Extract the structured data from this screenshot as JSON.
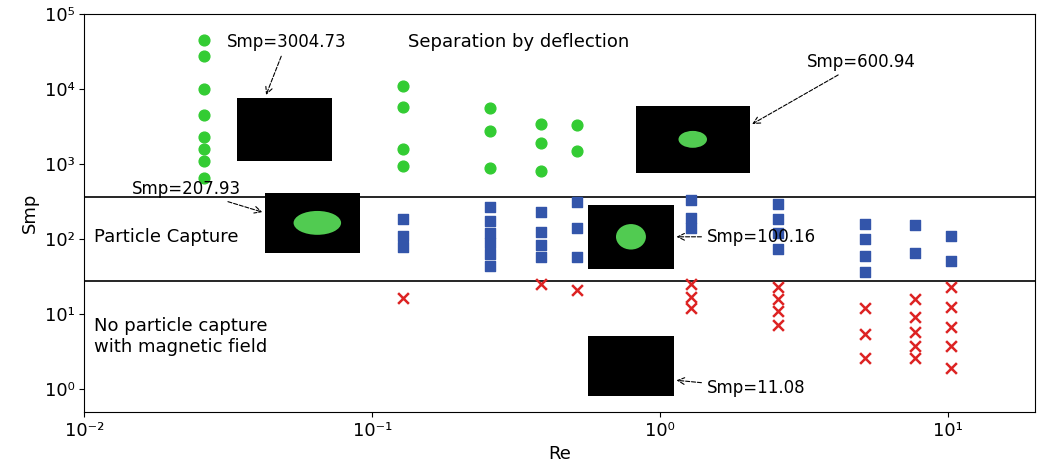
{
  "chart_data": {
    "type": "scatter",
    "xlabel": "Re",
    "ylabel": "Smp",
    "log": true,
    "xlim": [
      0.01,
      20
    ],
    "ylim": [
      0.5,
      100000
    ],
    "xticks": [
      {
        "value": 0.01,
        "label": "10⁻²"
      },
      {
        "value": 0.1,
        "label": "10⁻¹"
      },
      {
        "value": 1,
        "label": "10⁰"
      },
      {
        "value": 10,
        "label": "10¹"
      }
    ],
    "yticks": [
      {
        "value": 1,
        "label": "10⁰"
      },
      {
        "value": 10,
        "label": "10¹"
      },
      {
        "value": 100,
        "label": "10²"
      },
      {
        "value": 1000,
        "label": "10³"
      },
      {
        "value": 10000,
        "label": "10⁴"
      },
      {
        "value": 100000,
        "label": "10⁵"
      }
    ],
    "hlines": [
      28,
      360
    ],
    "series": [
      {
        "color": "#33cc33",
        "marker": "circle",
        "x": [
          0.026,
          0.026,
          0.026,
          0.026,
          0.026,
          0.026,
          0.026,
          0.026,
          0.128,
          0.128,
          0.128,
          0.128,
          0.256,
          0.256,
          0.256,
          0.385,
          0.385,
          0.385,
          0.513,
          0.513
        ],
        "values": [
          45000,
          28000,
          10000,
          4500,
          2300,
          1600,
          1100,
          650,
          11000,
          5800,
          1600,
          950,
          5600,
          2800,
          900,
          3400,
          1900,
          800,
          3300,
          1500
        ]
      },
      {
        "color": "#3355aa",
        "marker": "square",
        "x": [
          0.128,
          0.128,
          0.128,
          0.256,
          0.256,
          0.256,
          0.256,
          0.256,
          0.256,
          0.385,
          0.385,
          0.385,
          0.385,
          0.513,
          0.513,
          0.513,
          1.28,
          1.28,
          1.28,
          2.56,
          2.56,
          2.56,
          2.56,
          5.13,
          5.13,
          5.13,
          5.13,
          7.69,
          7.69,
          10.26,
          10.26
        ],
        "values": [
          183,
          111,
          78,
          268,
          175,
          121,
          90,
          63,
          44,
          232,
          123,
          84,
          57,
          310,
          140,
          57,
          330,
          190,
          140,
          290,
          183,
          121,
          74,
          160,
          100,
          60,
          37,
          155,
          66,
          111,
          51
        ]
      },
      {
        "color": "#dd2222",
        "marker": "x",
        "x": [
          0.128,
          0.385,
          0.513,
          1.28,
          1.28,
          1.28,
          2.56,
          2.56,
          2.56,
          2.56,
          5.13,
          5.13,
          5.13,
          7.69,
          7.69,
          7.69,
          7.69,
          7.69,
          10.26,
          10.26,
          10.26,
          10.26,
          10.26
        ],
        "values": [
          16.5,
          25,
          21,
          25,
          17,
          12,
          23,
          16,
          11,
          7.2,
          12,
          5.5,
          2.6,
          16,
          9.1,
          5.8,
          3.8,
          2.6,
          23,
          12.5,
          6.8,
          3.8,
          1.9
        ]
      }
    ],
    "annotations": [
      {
        "text": "Smp=3004.73"
      },
      {
        "text": "Separation by deflection"
      },
      {
        "text": "Smp=600.94"
      },
      {
        "text": "Smp=207.93"
      },
      {
        "text": "Particle Capture"
      },
      {
        "text": "Smp=100.16"
      },
      {
        "text": "No particle capture\nwith magnetic field"
      },
      {
        "text": "Smp=11.08"
      }
    ]
  }
}
